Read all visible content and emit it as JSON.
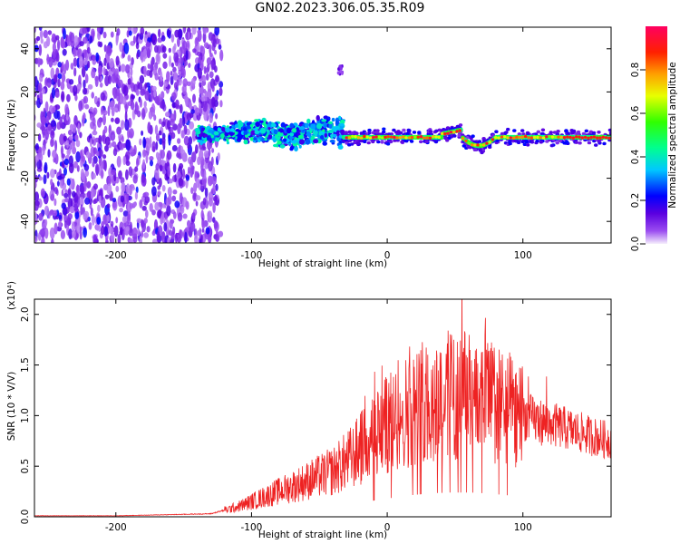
{
  "title": "GN02.2023.306.05.35.R09",
  "chart_data": [
    {
      "type": "heatmap",
      "name": "spectrogram",
      "xlabel": "Height of straight line (km)",
      "ylabel": "Frequency (Hz)",
      "xlim": [
        -260,
        165
      ],
      "ylim": [
        -50,
        50
      ],
      "xticks": [
        -200,
        -100,
        0,
        100
      ],
      "yticks": [
        -40,
        -20,
        0,
        20,
        40
      ],
      "colorbar": {
        "label": "Normalized spectral amplitude",
        "range": [
          0.0,
          1.0
        ],
        "ticks": [
          "0.0",
          "0.2",
          "0.4",
          "0.6",
          "0.8"
        ],
        "colormap": "rainbow"
      },
      "regions": [
        {
          "x_range": [
            -260,
            -125
          ],
          "description": "broadband noise",
          "amplitude": [
            0.1,
            0.3
          ]
        },
        {
          "x_range": [
            -140,
            -32
          ],
          "center_hz": 2,
          "amplitude": [
            0.2,
            0.45
          ]
        },
        {
          "x_range": [
            -32,
            165
          ],
          "center_hz": -1,
          "amplitude": [
            0.6,
            0.95
          ]
        }
      ]
    },
    {
      "type": "line",
      "name": "snr",
      "xlabel": "Height of straight line (km)",
      "ylabel": "SNR (10 * V/V)",
      "yscale_label": "(x10⁴)",
      "xlim": [
        -260,
        165
      ],
      "ylim": [
        0,
        2.15
      ],
      "xticks": [
        -200,
        -100,
        0,
        100
      ],
      "yticks": [
        "0.0",
        "0.5",
        "1.0",
        "1.5",
        "2.0"
      ],
      "color": "#ee2222",
      "envelope": {
        "x": [
          -260,
          -200,
          -130,
          -110,
          -100,
          -80,
          -60,
          -40,
          -25,
          -10,
          0,
          15,
          30,
          45,
          60,
          75,
          90,
          110,
          130,
          150,
          165
        ],
        "y": [
          0.01,
          0.01,
          0.03,
          0.1,
          0.15,
          0.25,
          0.35,
          0.45,
          0.6,
          0.8,
          0.9,
          1.05,
          1.15,
          1.2,
          1.2,
          1.15,
          1.05,
          0.95,
          0.88,
          0.8,
          0.75
        ]
      }
    }
  ]
}
